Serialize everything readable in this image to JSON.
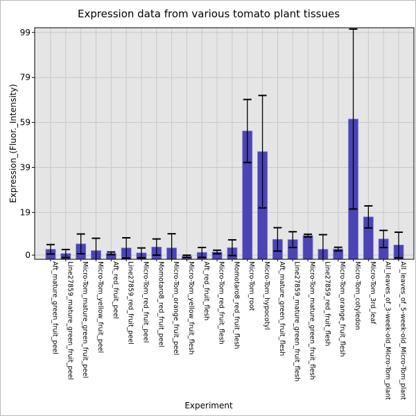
{
  "chart_data": {
    "type": "bar",
    "title": "Expression data from various tomato plant tissues",
    "xlabel": "Experiment",
    "ylabel": "Expression_(Fluor._Intensity)",
    "ylim": [
      -1.85,
      101.1
    ],
    "yticks": [
      0,
      19,
      39,
      59,
      79,
      99
    ],
    "grid": true,
    "bar_color": "#4b44b5",
    "background": "#e5e5e5",
    "categories": [
      "Aft_mature_green_fruit_peel",
      "Line27859_mature_green_fruit_peel",
      "Micro-Tom_mature_green_fruit_peel",
      "Micro-Tom_yellow_fruit_peel",
      "Aft_red_fruit_peel",
      "Line27859_red_fruit_peel",
      "Micro-Tom_red_fruit_peel",
      "Momotaro8_red_fruit_peel",
      "Micro-Tom_orange_fruit_peel",
      "Micro-Tom_yellow_fruit_flesh",
      "Aft_red_fruit_flesh",
      "Micro-Tom_red_fruit_flesh",
      "Momotaro8_red_fruit_flesh",
      "Micro-Tom_root",
      "Micro-Tom_hypocotyl",
      "Aft_mature_green_fruit_flesh",
      "Line27859_mature_green_fruit_flesh",
      "Micro-Tom_mature_green_fruit_flesh",
      "Line27859_red_fruit_flesh",
      "Micro-Tom_orange_fruit_flesh",
      "Micro-Tom_cotyledon",
      "Micro-Tom_3rd_leaf",
      "All_leaves_of_3-week-old_Micro-Tom_plant",
      "All_leaves_of_5-week-old_Micro-Tom_plant"
    ],
    "values": [
      2.6,
      0.7,
      5.0,
      2.0,
      0.8,
      3.2,
      1.0,
      3.6,
      3.2,
      -0.5,
      1.2,
      1.4,
      3.3,
      55.2,
      46.0,
      7.0,
      6.9,
      8.7,
      2.6,
      2.7,
      60.5,
      17.0,
      7.2,
      4.5
    ],
    "errors": [
      2.1,
      1.8,
      4.4,
      5.5,
      0.6,
      4.5,
      2.2,
      3.6,
      6.3,
      0.5,
      2.2,
      0.8,
      3.5,
      14.0,
      25.0,
      5.2,
      3.5,
      0.6,
      6.5,
      0.8,
      40.0,
      4.9,
      3.8,
      5.7
    ]
  }
}
